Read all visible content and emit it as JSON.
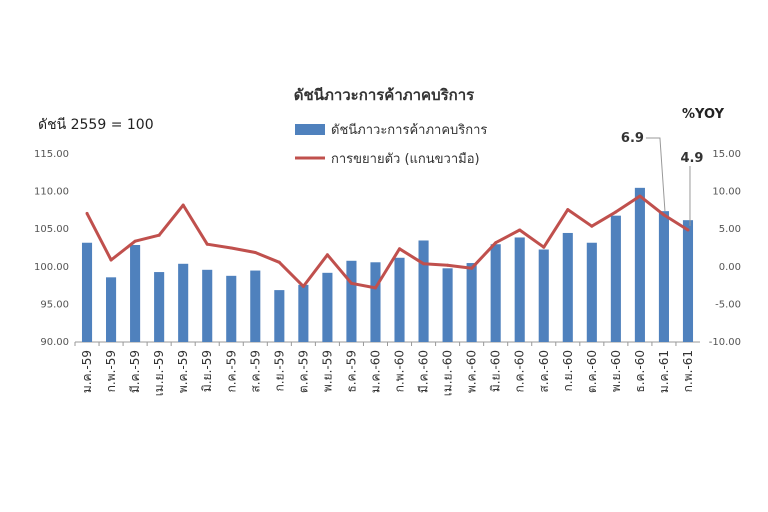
{
  "chart_data": {
    "type": "bar+line",
    "title": "ดัชนีภาวะการค้าภาคบริการ",
    "left_axis_note": "ดัชนี 2559 = 100",
    "right_axis_note": "%YOY",
    "categories": [
      "ม.ค.-59",
      "ก.พ.-59",
      "มี.ค.-59",
      "เม.ย.-59",
      "พ.ค.-59",
      "มิ.ย.-59",
      "ก.ค.-59",
      "ส.ค.-59",
      "ก.ย.-59",
      "ต.ค.-59",
      "พ.ย.-59",
      "ธ.ค.-59",
      "ม.ค.-60",
      "ก.พ.-60",
      "มี.ค.-60",
      "เม.ย.-60",
      "พ.ค.-60",
      "มิ.ย.-60",
      "ก.ค.-60",
      "ส.ค.-60",
      "ก.ย.-60",
      "ต.ค.-60",
      "พ.ย.-60",
      "ธ.ค.-60",
      "ม.ค.-61",
      "ก.พ.-61"
    ],
    "series": [
      {
        "name": "ดัชนีภาวะการค้าภาคบริการ",
        "type": "bar",
        "axis": "left",
        "color": "#4F81BD",
        "values": [
          103.2,
          98.6,
          102.9,
          99.3,
          100.4,
          99.6,
          98.8,
          99.5,
          96.9,
          97.6,
          99.2,
          100.8,
          100.6,
          101.2,
          103.5,
          99.8,
          100.5,
          103.0,
          103.9,
          102.3,
          104.5,
          103.2,
          106.8,
          110.5,
          107.4,
          106.2
        ]
      },
      {
        "name": "การขยายตัว (แกนขวามือ)",
        "type": "line",
        "axis": "right",
        "color": "#C0504D",
        "values": [
          7.1,
          0.9,
          3.4,
          4.2,
          8.2,
          3.0,
          2.5,
          1.9,
          0.6,
          -2.6,
          1.6,
          -2.2,
          -2.8,
          2.4,
          0.4,
          0.2,
          -0.2,
          3.2,
          4.9,
          2.6,
          7.6,
          5.4,
          7.3,
          9.4,
          6.9,
          4.9
        ]
      }
    ],
    "left_axis": {
      "min": 90,
      "max": 115,
      "step": 5,
      "ticks": [
        "90.00",
        "95.00",
        "100.00",
        "105.00",
        "110.00",
        "115.00"
      ]
    },
    "right_axis": {
      "min": -10,
      "max": 15,
      "step": 5,
      "ticks": [
        "-10.00",
        "-5.00",
        "0.00",
        "5.00",
        "10.00",
        "15.00"
      ]
    },
    "annotations": [
      {
        "text": "6.9",
        "index": 24
      },
      {
        "text": "4.9",
        "index": 25
      }
    ],
    "legend_position": "top-center",
    "grid": false
  }
}
